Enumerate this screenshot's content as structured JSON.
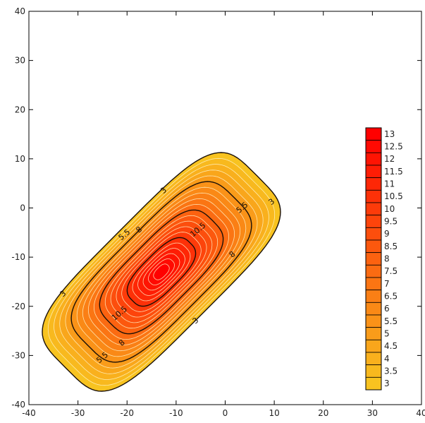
{
  "chart_data": {
    "type": "contour",
    "title": "",
    "xlabel": "",
    "ylabel": "",
    "xlim": [
      -40,
      40
    ],
    "ylim": [
      -40,
      40
    ],
    "x_ticks": [
      "-40",
      "-30",
      "-20",
      "-10",
      "0",
      "10",
      "20",
      "30",
      "40"
    ],
    "y_ticks": [
      "-40",
      "-30",
      "-20",
      "-10",
      "0",
      "10",
      "20",
      "30",
      "40"
    ],
    "grid": false,
    "peak": {
      "x": -13,
      "y": -13,
      "value": 13.5
    },
    "contour_levels": [
      3,
      3.5,
      4,
      4.5,
      5,
      5.5,
      6,
      6.5,
      7,
      7.5,
      8,
      8.5,
      9,
      9.5,
      10,
      10.5,
      11,
      11.5,
      12,
      12.5,
      13
    ],
    "major_contours": [
      3,
      5.5,
      8,
      10.5
    ],
    "contour_labels": [
      {
        "level": "3",
        "x": -12.5,
        "y": 3.5
      },
      {
        "level": "3",
        "x": 9.5,
        "y": 1.2
      },
      {
        "level": "3",
        "x": -33,
        "y": -17.5
      },
      {
        "level": "3",
        "x": -6,
        "y": -23
      },
      {
        "level": "5.5",
        "x": -20.5,
        "y": -5.5
      },
      {
        "level": "5.5",
        "x": 3.5,
        "y": 0
      },
      {
        "level": "5.5",
        "x": -25,
        "y": -30.5
      },
      {
        "level": "8",
        "x": -17.5,
        "y": -4.5
      },
      {
        "level": "8",
        "x": 1.5,
        "y": -9.5
      },
      {
        "level": "8",
        "x": -21,
        "y": -27.5
      },
      {
        "level": "10.5",
        "x": -5.5,
        "y": -4.5
      },
      {
        "level": "10.5",
        "x": -21.5,
        "y": -21.5
      }
    ],
    "colorbar": {
      "labels": [
        "13",
        "12.5",
        "12",
        "11.5",
        "11",
        "10.5",
        "10",
        "9.5",
        "9",
        "8.5",
        "8",
        "7.5",
        "7",
        "6.5",
        "6",
        "5.5",
        "5",
        "4.5",
        "4",
        "3.5",
        "3"
      ],
      "color_low": "#f8c320",
      "color_high": "#ff0000",
      "placement": "right"
    },
    "colors": {
      "major_line": "#1a1008",
      "minor_line": "#fff3c8",
      "axis": "#000000"
    }
  }
}
